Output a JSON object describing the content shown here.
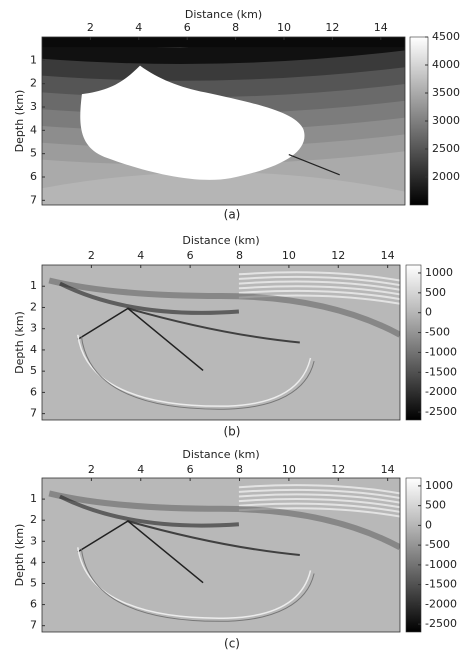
{
  "panels": [
    {
      "xlabel": "Distance (km)",
      "ylabel": "Depth (km)",
      "caption": "(a)",
      "xlim": [
        0,
        15
      ],
      "xticks": [
        2,
        4,
        6,
        8,
        10,
        12,
        14
      ],
      "ylim": [
        0,
        7.2
      ],
      "yticks": [
        1,
        2,
        3,
        4,
        5,
        6,
        7
      ],
      "colorbar": {
        "lim": [
          1500,
          4500
        ],
        "ticks": [
          4500,
          4000,
          3500,
          3000,
          2500,
          2000
        ]
      }
    },
    {
      "xlabel": "Distance (km)",
      "ylabel": "Depth (km)",
      "caption": "(b)",
      "xlim": [
        0,
        14.5
      ],
      "xticks": [
        2,
        4,
        6,
        8,
        10,
        12,
        14
      ],
      "ylim": [
        0,
        7.3
      ],
      "yticks": [
        1,
        2,
        3,
        4,
        5,
        6,
        7
      ],
      "colorbar": {
        "lim": [
          -2700,
          1200
        ],
        "ticks": [
          1000,
          500,
          0,
          -500,
          -1000,
          -1500,
          -2000,
          -2500
        ]
      }
    },
    {
      "xlabel": "Distance (km)",
      "ylabel": "Depth (km)",
      "caption": "(c)",
      "xlim": [
        0,
        14.5
      ],
      "xticks": [
        2,
        4,
        6,
        8,
        10,
        12,
        14
      ],
      "ylim": [
        0,
        7.3
      ],
      "yticks": [
        1,
        2,
        3,
        4,
        5,
        6,
        7
      ],
      "colorbar": {
        "lim": [
          -2700,
          1200
        ],
        "ticks": [
          1000,
          500,
          0,
          -500,
          -1000,
          -1500,
          -2000,
          -2500
        ]
      }
    }
  ]
}
